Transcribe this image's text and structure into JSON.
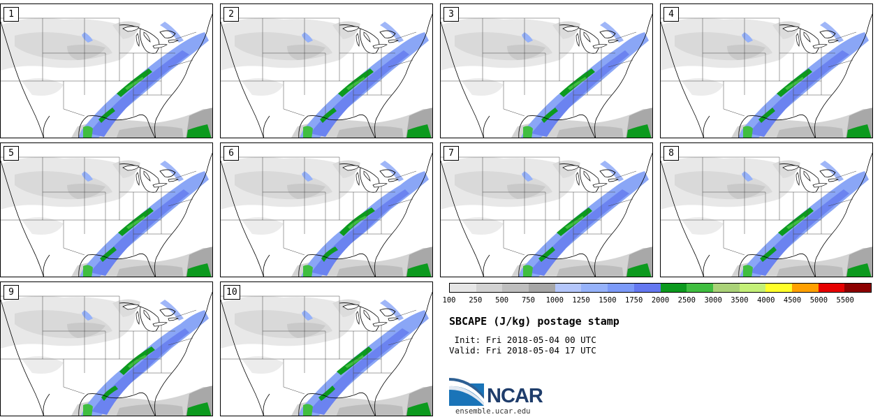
{
  "panels": [
    "1",
    "2",
    "3",
    "4",
    "5",
    "6",
    "7",
    "8",
    "9",
    "10"
  ],
  "colorbar": {
    "colors": [
      "#e6e6e6",
      "#d2d2d2",
      "#bebebe",
      "#a6a6a6",
      "#b4c6fa",
      "#96b2fa",
      "#7c9af8",
      "#6478f0",
      "#0c9a1e",
      "#40be40",
      "#aad278",
      "#c4f078",
      "#ffff2a",
      "#ffa000",
      "#e60000",
      "#8c0000"
    ],
    "labels": [
      "100",
      "250",
      "500",
      "750",
      "1000",
      "1250",
      "1500",
      "1750",
      "2000",
      "2500",
      "3000",
      "3500",
      "4000",
      "4500",
      "5000",
      "5500"
    ]
  },
  "title": "SBCAPE (J/kg) postage stamp",
  "init": " Init: Fri 2018-05-04 00 UTC",
  "valid": "Valid: Fri 2018-05-04 17 UTC",
  "logo": {
    "name": "NCAR",
    "url": "ensemble.ucar.edu"
  }
}
